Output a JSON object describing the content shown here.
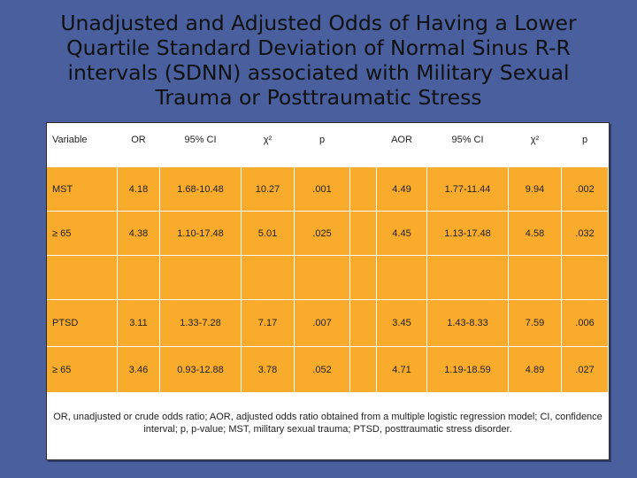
{
  "title": "Unadjusted and Adjusted Odds of Having a Lower Quartile Standard Deviation of Normal Sinus R-R intervals (SDNN) associated with Military Sexual Trauma or Posttraumatic Stress",
  "table": {
    "headers": [
      "Variable",
      "OR",
      "95% CI",
      "χ²",
      "p",
      "",
      "AOR",
      "95% CI",
      "χ²",
      "p"
    ],
    "rows": [
      [
        "MST",
        "4.18",
        "1.68-10.48",
        "10.27",
        ".001",
        "",
        "4.49",
        "1.77-11.44",
        "9.94",
        ".002"
      ],
      [
        "≥ 65",
        "4.38",
        "1.10-17.48",
        "5.01",
        ".025",
        "",
        "4.45",
        "1.13-17.48",
        "4.58",
        ".032"
      ],
      [
        "",
        "",
        "",
        "",
        "",
        "",
        "",
        "",
        "",
        ""
      ],
      [
        "PTSD",
        "3.11",
        "1.33-7.28",
        "7.17",
        ".007",
        "",
        "3.45",
        "1.43-8.33",
        "7.59",
        ".006"
      ],
      [
        "≥ 65",
        "3.46",
        "0.93-12.88",
        "3.78",
        ".052",
        "",
        "4.71",
        "1.19-18.59",
        "4.89",
        ".027"
      ]
    ]
  },
  "footnote": "OR, unadjusted or crude odds ratio; AOR, adjusted odds ratio obtained from a multiple logistic regression model; CI, confidence interval; p, p-value; MST, military sexual trauma; PTSD, posttraumatic stress disorder.",
  "colors": {
    "background": "#4a5f9e",
    "cell": "#f9ab2c",
    "panel": "#ffffff"
  }
}
